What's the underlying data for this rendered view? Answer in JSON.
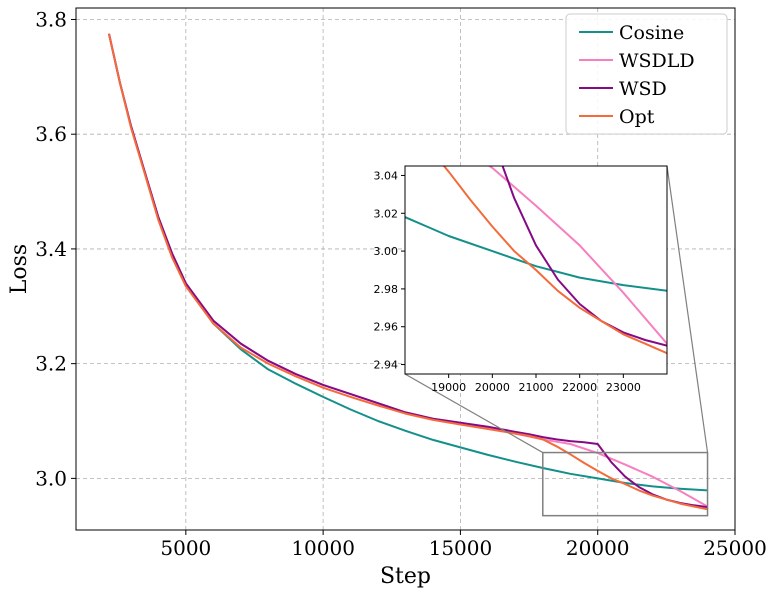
{
  "chart_data": {
    "type": "line",
    "xlabel": "Step",
    "ylabel": "Loss",
    "xlim": [
      1000,
      25000
    ],
    "ylim": [
      2.91,
      3.82
    ],
    "xticks": [
      5000,
      10000,
      15000,
      20000,
      25000
    ],
    "yticks": [
      3.0,
      3.2,
      3.4,
      3.6,
      3.8
    ],
    "xtick_labels": [
      "5000",
      "10000",
      "15000",
      "20000",
      "25000"
    ],
    "ytick_labels": [
      "3.0",
      "3.2",
      "3.4",
      "3.6",
      "3.8"
    ],
    "grid": true,
    "legend_position": "top-right",
    "series": [
      {
        "name": "Cosine",
        "color": "#14908a",
        "x": [
          2200,
          2600,
          3000,
          3500,
          4000,
          4500,
          5000,
          6000,
          7000,
          8000,
          9000,
          10000,
          11000,
          12000,
          13000,
          14000,
          15000,
          16000,
          17000,
          18000,
          18500,
          19000,
          20000,
          21000,
          22000,
          23000,
          24000
        ],
        "y": [
          3.775,
          3.69,
          3.615,
          3.535,
          3.455,
          3.392,
          3.34,
          3.27,
          3.225,
          3.19,
          3.165,
          3.142,
          3.12,
          3.1,
          3.083,
          3.067,
          3.054,
          3.041,
          3.029,
          3.018,
          3.013,
          3.008,
          3.0,
          2.992,
          2.986,
          2.982,
          2.979
        ]
      },
      {
        "name": "WSDLD",
        "color": "#f77fbf",
        "x": [
          2200,
          2600,
          3000,
          3500,
          4000,
          4500,
          5000,
          6000,
          7000,
          8000,
          9000,
          10000,
          11000,
          12000,
          13000,
          14000,
          15000,
          16000,
          17000,
          17500,
          18000,
          18500,
          19000,
          20000,
          21000,
          22000,
          23000,
          24000
        ],
        "y": [
          3.775,
          3.69,
          3.615,
          3.535,
          3.455,
          3.392,
          3.34,
          3.275,
          3.235,
          3.205,
          3.182,
          3.163,
          3.147,
          3.131,
          3.115,
          3.104,
          3.097,
          3.088,
          3.078,
          3.073,
          3.068,
          3.064,
          3.06,
          3.044,
          3.024,
          3.003,
          2.978,
          2.951
        ]
      },
      {
        "name": "WSD",
        "color": "#850a85",
        "x": [
          2200,
          2600,
          3000,
          3500,
          4000,
          4500,
          5000,
          6000,
          7000,
          8000,
          9000,
          10000,
          11000,
          12000,
          13000,
          14000,
          15000,
          16000,
          17000,
          17500,
          18000,
          18500,
          19000,
          19500,
          20000,
          20500,
          21000,
          21500,
          22000,
          22500,
          23000,
          23500,
          24000
        ],
        "y": [
          3.775,
          3.69,
          3.615,
          3.535,
          3.455,
          3.392,
          3.34,
          3.275,
          3.235,
          3.205,
          3.182,
          3.163,
          3.147,
          3.131,
          3.115,
          3.104,
          3.097,
          3.09,
          3.081,
          3.077,
          3.072,
          3.068,
          3.065,
          3.063,
          3.06,
          3.028,
          3.003,
          2.985,
          2.972,
          2.963,
          2.957,
          2.953,
          2.95
        ]
      },
      {
        "name": "Opt",
        "color": "#f56a3a",
        "x": [
          2200,
          2600,
          3000,
          3500,
          4000,
          4500,
          5000,
          6000,
          7000,
          8000,
          9000,
          10000,
          11000,
          12000,
          13000,
          14000,
          15000,
          16000,
          17000,
          17500,
          18000,
          18500,
          19000,
          19500,
          20000,
          20500,
          21000,
          21500,
          22000,
          22500,
          23000,
          23500,
          24000
        ],
        "y": [
          3.775,
          3.69,
          3.612,
          3.532,
          3.45,
          3.385,
          3.335,
          3.27,
          3.228,
          3.2,
          3.178,
          3.158,
          3.142,
          3.127,
          3.113,
          3.102,
          3.094,
          3.086,
          3.078,
          3.074,
          3.068,
          3.056,
          3.042,
          3.027,
          3.013,
          3.0,
          2.99,
          2.979,
          2.97,
          2.963,
          2.956,
          2.951,
          2.946
        ]
      }
    ],
    "inset": {
      "xlim": [
        18000,
        24000
      ],
      "ylim": [
        2.935,
        3.045
      ],
      "xticks": [
        19000,
        20000,
        21000,
        22000,
        23000
      ],
      "yticks": [
        2.94,
        2.96,
        2.98,
        3.0,
        3.02,
        3.04
      ],
      "xtick_labels": [
        "19000",
        "20000",
        "21000",
        "22000",
        "23000"
      ],
      "ytick_labels": [
        "2.94",
        "2.96",
        "2.98",
        "3.00",
        "3.02",
        "3.04"
      ]
    }
  }
}
